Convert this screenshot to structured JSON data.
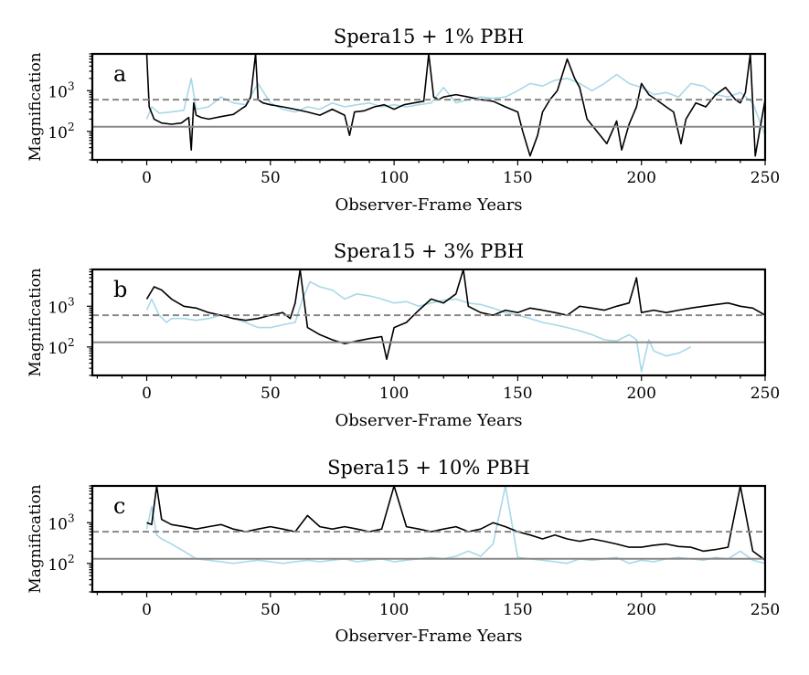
{
  "figure": {
    "x_axis_label": "Observer-Frame Years",
    "y_axis_label": "Magnification",
    "reference_line_labels": [
      "solid gray",
      "dashed gray"
    ]
  },
  "chart_data": [
    {
      "type": "line",
      "panel": "a",
      "title": "Spera15 + 1% PBH",
      "xlabel": "Observer-Frame Years",
      "ylabel": "Magnification",
      "xlim": [
        -22,
        250
      ],
      "ylim": [
        20,
        8000
      ],
      "yscale": "log",
      "xticks": [
        "0",
        "50",
        "100",
        "150",
        "200",
        "250"
      ],
      "yticks": [
        {
          "label": "10",
          "exp": "2",
          "value": 100
        },
        {
          "label": "10",
          "exp": "3",
          "value": 1000
        }
      ],
      "reference_lines": [
        {
          "value": 130,
          "style": "solid",
          "color": "#888888"
        },
        {
          "value": 600,
          "style": "dashed",
          "color": "#888888"
        }
      ],
      "series": [
        {
          "name": "black",
          "color": "#000000",
          "x": [
            0,
            1,
            3,
            6,
            10,
            14,
            17,
            18,
            19,
            20,
            22,
            25,
            30,
            35,
            38,
            40,
            42,
            44,
            45,
            47,
            50,
            55,
            60,
            65,
            70,
            75,
            80,
            82,
            84,
            88,
            92,
            96,
            100,
            104,
            108,
            112,
            114,
            116,
            118,
            120,
            125,
            130,
            135,
            140,
            145,
            150,
            152,
            155,
            158,
            160,
            163,
            166,
            170,
            173,
            175,
            178,
            182,
            186,
            190,
            192,
            195,
            198,
            200,
            203,
            206,
            210,
            213,
            216,
            218,
            222,
            226,
            230,
            234,
            238,
            240,
            242,
            244,
            246,
            250
          ],
          "y": [
            8000,
            400,
            200,
            160,
            150,
            160,
            220,
            35,
            500,
            250,
            220,
            200,
            230,
            260,
            350,
            420,
            700,
            8000,
            600,
            500,
            450,
            400,
            350,
            300,
            250,
            350,
            250,
            80,
            300,
            320,
            400,
            450,
            350,
            450,
            500,
            550,
            8000,
            700,
            600,
            700,
            800,
            700,
            600,
            550,
            400,
            300,
            100,
            25,
            80,
            300,
            600,
            1000,
            6000,
            2000,
            1200,
            200,
            100,
            50,
            180,
            35,
            150,
            400,
            1500,
            800,
            600,
            400,
            300,
            50,
            200,
            500,
            400,
            800,
            1200,
            600,
            500,
            900,
            8000,
            25,
            600
          ]
        },
        {
          "name": "light blue",
          "color": "#a8d8e8",
          "x": [
            0,
            2,
            5,
            10,
            15,
            18,
            20,
            25,
            30,
            35,
            40,
            45,
            50,
            55,
            60,
            65,
            70,
            75,
            80,
            85,
            90,
            95,
            100,
            105,
            110,
            115,
            120,
            125,
            130,
            135,
            140,
            145,
            150,
            155,
            160,
            165,
            170,
            175,
            180,
            185,
            190,
            195,
            200,
            205,
            210,
            215,
            220,
            225,
            230,
            235,
            240,
            245,
            250
          ],
          "y": [
            200,
            400,
            280,
            300,
            330,
            2000,
            350,
            400,
            700,
            500,
            450,
            1500,
            500,
            350,
            300,
            400,
            350,
            500,
            400,
            450,
            500,
            400,
            450,
            400,
            450,
            500,
            1200,
            500,
            600,
            700,
            650,
            700,
            1000,
            1500,
            1300,
            1800,
            2000,
            1500,
            1000,
            1500,
            2500,
            1500,
            1200,
            800,
            900,
            700,
            1500,
            1300,
            800,
            700,
            900,
            500,
            80
          ]
        }
      ]
    },
    {
      "type": "line",
      "panel": "b",
      "title": "Spera15 + 3% PBH",
      "xlabel": "Observer-Frame Years",
      "ylabel": "Magnification",
      "xlim": [
        -22,
        250
      ],
      "ylim": [
        20,
        8000
      ],
      "yscale": "log",
      "xticks": [
        "0",
        "50",
        "100",
        "150",
        "200",
        "250"
      ],
      "yticks": [
        {
          "label": "10",
          "exp": "2",
          "value": 100
        },
        {
          "label": "10",
          "exp": "3",
          "value": 1000
        }
      ],
      "reference_lines": [
        {
          "value": 130,
          "style": "solid",
          "color": "#888888"
        },
        {
          "value": 600,
          "style": "dashed",
          "color": "#888888"
        }
      ],
      "series": [
        {
          "name": "black",
          "color": "#000000",
          "x": [
            0,
            3,
            6,
            10,
            15,
            20,
            25,
            30,
            35,
            40,
            45,
            50,
            55,
            58,
            60,
            62,
            65,
            70,
            75,
            80,
            85,
            90,
            95,
            97,
            100,
            105,
            110,
            115,
            120,
            125,
            128,
            130,
            135,
            140,
            145,
            150,
            155,
            160,
            165,
            170,
            175,
            180,
            185,
            190,
            195,
            198,
            200,
            205,
            210,
            215,
            220,
            225,
            230,
            235,
            240,
            245,
            250
          ],
          "y": [
            1500,
            3000,
            2500,
            1500,
            1000,
            900,
            700,
            600,
            500,
            450,
            500,
            600,
            700,
            500,
            1200,
            8000,
            300,
            200,
            150,
            120,
            140,
            160,
            180,
            50,
            300,
            400,
            800,
            1500,
            1200,
            2000,
            8000,
            1000,
            700,
            600,
            800,
            700,
            900,
            800,
            700,
            600,
            1000,
            900,
            800,
            1000,
            1200,
            5000,
            700,
            800,
            700,
            800,
            900,
            1000,
            1100,
            1200,
            1000,
            900,
            600
          ]
        },
        {
          "name": "light blue",
          "color": "#a8d8e8",
          "x": [
            0,
            2,
            5,
            8,
            10,
            15,
            20,
            25,
            30,
            35,
            40,
            45,
            50,
            55,
            60,
            63,
            66,
            70,
            75,
            80,
            85,
            90,
            95,
            100,
            105,
            110,
            115,
            120,
            125,
            130,
            135,
            140,
            145,
            150,
            155,
            160,
            165,
            170,
            175,
            180,
            185,
            190,
            195,
            198,
            200,
            203,
            205,
            210,
            215,
            220
          ],
          "y": [
            800,
            1500,
            600,
            400,
            500,
            500,
            450,
            500,
            600,
            500,
            400,
            300,
            300,
            350,
            400,
            1500,
            4000,
            3000,
            2500,
            1500,
            2000,
            1800,
            1500,
            1200,
            1300,
            1000,
            1200,
            1400,
            1500,
            1200,
            1100,
            900,
            700,
            600,
            500,
            400,
            350,
            300,
            250,
            200,
            150,
            140,
            200,
            150,
            25,
            150,
            80,
            60,
            70,
            100
          ]
        }
      ]
    },
    {
      "type": "line",
      "panel": "c",
      "title": "Spera15 + 10% PBH",
      "xlabel": "Observer-Frame Years",
      "ylabel": "Magnification",
      "xlim": [
        -22,
        250
      ],
      "ylim": [
        20,
        8000
      ],
      "yscale": "log",
      "xticks": [
        "0",
        "50",
        "100",
        "150",
        "200",
        "250"
      ],
      "yticks": [
        {
          "label": "10",
          "exp": "2",
          "value": 100
        },
        {
          "label": "10",
          "exp": "3",
          "value": 1000
        }
      ],
      "reference_lines": [
        {
          "value": 130,
          "style": "solid",
          "color": "#888888"
        },
        {
          "value": 600,
          "style": "dashed",
          "color": "#888888"
        }
      ],
      "series": [
        {
          "name": "black",
          "color": "#000000",
          "x": [
            0,
            2,
            4,
            6,
            10,
            15,
            20,
            25,
            30,
            35,
            40,
            45,
            50,
            55,
            60,
            65,
            70,
            75,
            80,
            85,
            90,
            95,
            100,
            105,
            110,
            115,
            120,
            125,
            130,
            135,
            140,
            145,
            150,
            155,
            160,
            165,
            170,
            175,
            180,
            185,
            190,
            195,
            200,
            205,
            210,
            215,
            220,
            225,
            230,
            235,
            240,
            245,
            250
          ],
          "y": [
            1000,
            900,
            8000,
            1200,
            900,
            800,
            700,
            800,
            900,
            700,
            600,
            700,
            800,
            700,
            600,
            1500,
            800,
            700,
            800,
            700,
            600,
            700,
            8000,
            800,
            700,
            600,
            700,
            800,
            600,
            700,
            1000,
            800,
            600,
            500,
            400,
            500,
            400,
            350,
            400,
            350,
            300,
            250,
            250,
            280,
            300,
            260,
            250,
            200,
            220,
            250,
            8000,
            200,
            120
          ]
        },
        {
          "name": "light blue",
          "color": "#a8d8e8",
          "x": [
            0,
            2,
            4,
            6,
            10,
            15,
            20,
            25,
            30,
            35,
            40,
            45,
            50,
            55,
            60,
            65,
            70,
            75,
            80,
            85,
            90,
            95,
            100,
            105,
            110,
            115,
            120,
            125,
            130,
            135,
            140,
            145,
            150,
            155,
            160,
            165,
            170,
            175,
            180,
            185,
            190,
            195,
            200,
            205,
            210,
            215,
            220,
            225,
            230,
            235,
            240,
            245,
            250
          ],
          "y": [
            700,
            2500,
            500,
            400,
            300,
            200,
            130,
            120,
            110,
            100,
            110,
            120,
            110,
            100,
            110,
            120,
            110,
            120,
            130,
            110,
            120,
            130,
            110,
            120,
            130,
            140,
            130,
            150,
            200,
            150,
            300,
            8000,
            140,
            130,
            120,
            110,
            100,
            130,
            120,
            130,
            140,
            100,
            120,
            110,
            130,
            140,
            130,
            120,
            140,
            130,
            200,
            120,
            100
          ]
        }
      ]
    }
  ]
}
